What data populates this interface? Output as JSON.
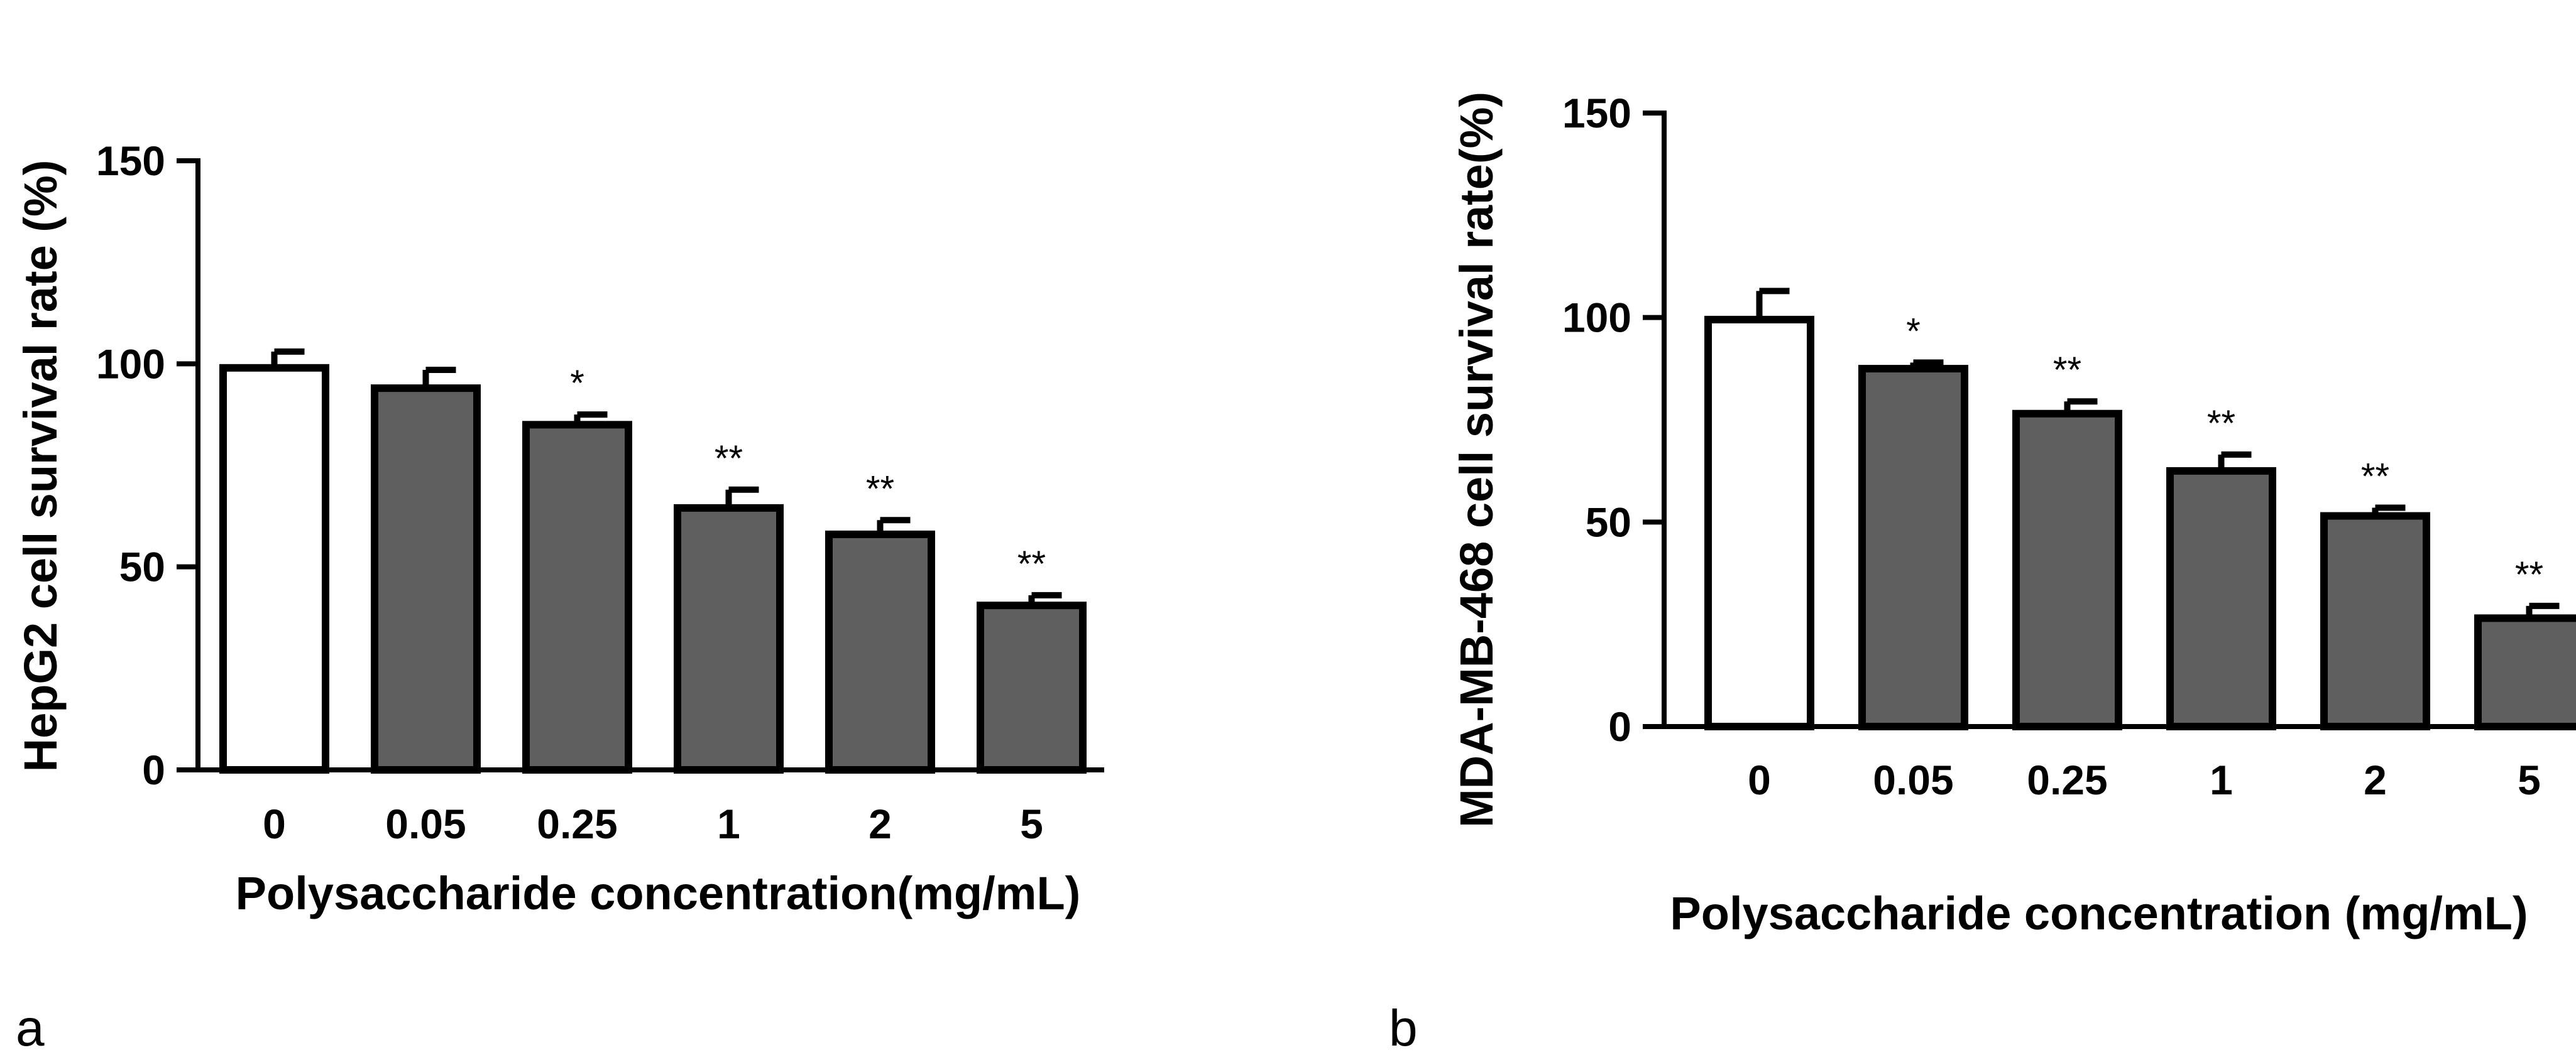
{
  "chart_data": [
    {
      "type": "bar",
      "panel_label": "a",
      "categories": [
        "0",
        "0.05",
        "0.25",
        "1",
        "2",
        "5"
      ],
      "values": [
        99,
        94,
        85,
        64.5,
        58,
        40.5
      ],
      "errors": [
        4,
        4.5,
        2.5,
        4.5,
        3.5,
        2.5
      ],
      "significance": [
        "",
        "",
        "*",
        "**",
        "**",
        "**"
      ],
      "bar_colors": [
        "#ffffff",
        "#5f5f5f",
        "#5f5f5f",
        "#5f5f5f",
        "#5f5f5f",
        "#5f5f5f"
      ],
      "xlabel": "Polysaccharide concentration(mg/mL)",
      "ylabel": "HepG2 cell survival rate (%)",
      "ylim": [
        0,
        150
      ],
      "yticks": [
        "0",
        "50",
        "100",
        "150"
      ]
    },
    {
      "type": "bar",
      "panel_label": "b",
      "categories": [
        "0",
        "0.05",
        "0.25",
        "1",
        "2",
        "5"
      ],
      "values": [
        99.5,
        87.5,
        76.5,
        62.5,
        51.5,
        26.5
      ],
      "errors": [
        7,
        1.5,
        3,
        4,
        2,
        3
      ],
      "significance": [
        "",
        "*",
        "**",
        "**",
        "**",
        "**"
      ],
      "bar_colors": [
        "#ffffff",
        "#5f5f5f",
        "#5f5f5f",
        "#5f5f5f",
        "#5f5f5f",
        "#5f5f5f"
      ],
      "xlabel": "Polysaccharide concentration (mg/mL)",
      "ylabel": "MDA-MB-468 cell survival rate(%)",
      "ylim": [
        0,
        150
      ],
      "yticks": [
        "0",
        "50",
        "100",
        "150"
      ]
    }
  ]
}
